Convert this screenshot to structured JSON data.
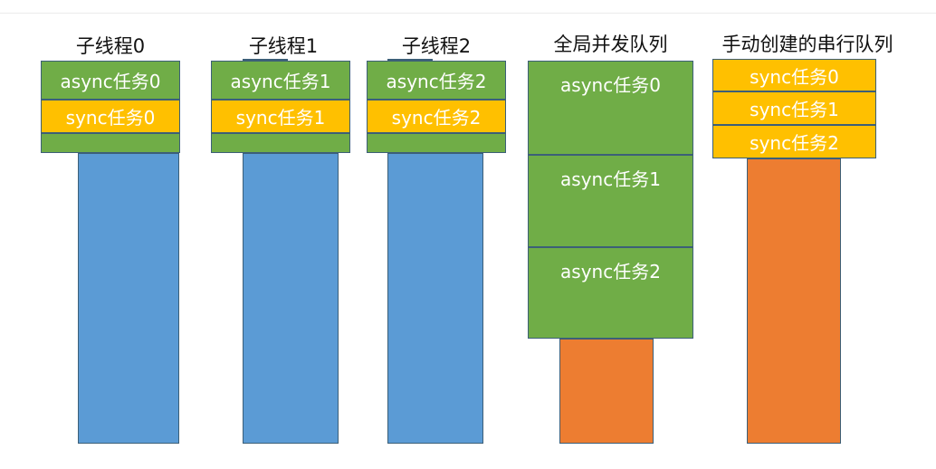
{
  "threads": [
    {
      "title": "子线程0",
      "async_label": "async任务0",
      "sync_label": "sync任务0"
    },
    {
      "title": "子线程1",
      "async_label": "async任务1",
      "sync_label": "sync任务1"
    },
    {
      "title": "子线程2",
      "async_label": "async任务2",
      "sync_label": "sync任务2"
    }
  ],
  "global_queue": {
    "title": "全局并发队列",
    "tasks": [
      "async任务0",
      "async任务1",
      "async任务2"
    ]
  },
  "serial_queue": {
    "title": "手动创建的串行队列",
    "tasks": [
      "sync任务0",
      "sync任务1",
      "sync任务2"
    ]
  },
  "colors": {
    "async_task": "#70ad47",
    "sync_task": "#ffc000",
    "thread_bar": "#5b9bd5",
    "queue_bar": "#ed7d31",
    "border": "#3c5f78"
  }
}
